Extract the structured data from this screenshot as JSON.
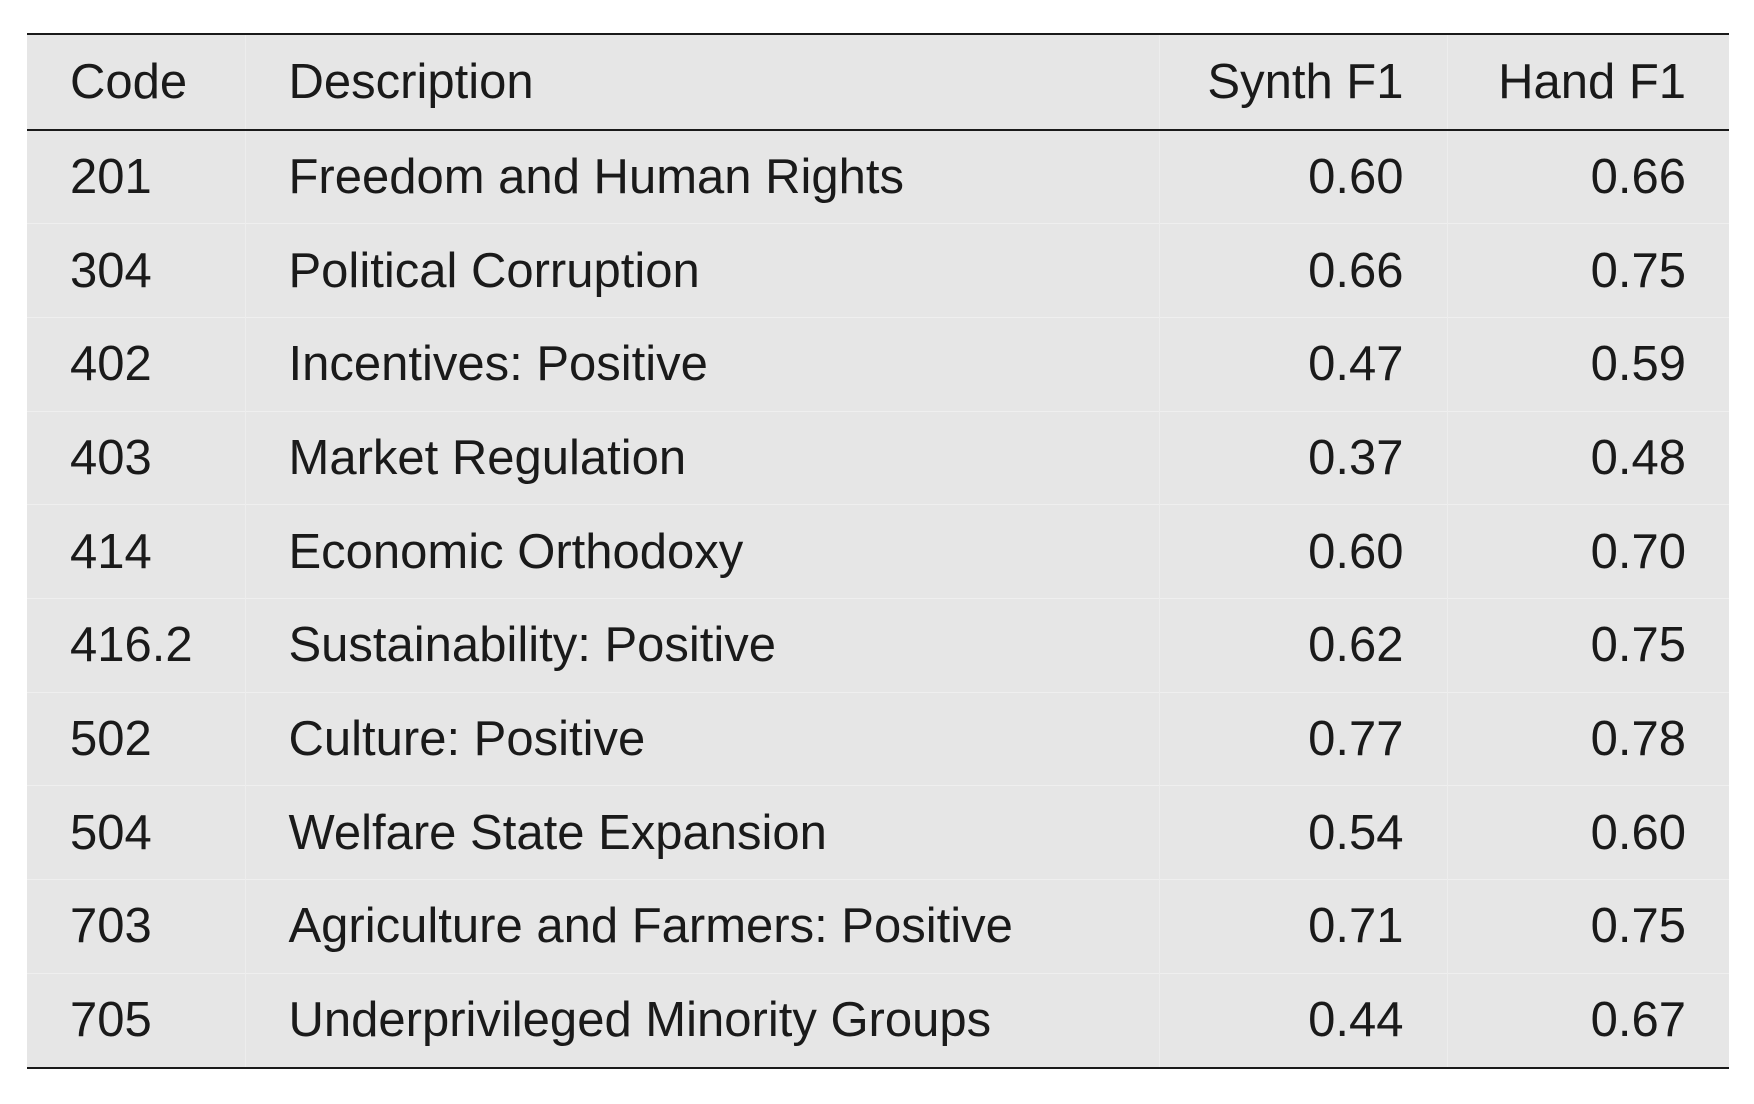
{
  "table": {
    "headers": {
      "code": "Code",
      "description": "Description",
      "synth_f1": "Synth F1",
      "hand_f1": "Hand F1"
    },
    "rows": [
      {
        "code": "201",
        "description": "Freedom and Human Rights",
        "synth_f1": "0.60",
        "hand_f1": "0.66"
      },
      {
        "code": "304",
        "description": "Political Corruption",
        "synth_f1": "0.66",
        "hand_f1": "0.75"
      },
      {
        "code": "402",
        "description": "Incentives: Positive",
        "synth_f1": "0.47",
        "hand_f1": "0.59"
      },
      {
        "code": "403",
        "description": "Market Regulation",
        "synth_f1": "0.37",
        "hand_f1": "0.48"
      },
      {
        "code": "414",
        "description": "Economic Orthodoxy",
        "synth_f1": "0.60",
        "hand_f1": "0.70"
      },
      {
        "code": "416.2",
        "description": "Sustainability: Positive",
        "synth_f1": "0.62",
        "hand_f1": "0.75"
      },
      {
        "code": "502",
        "description": "Culture: Positive",
        "synth_f1": "0.77",
        "hand_f1": "0.78"
      },
      {
        "code": "504",
        "description": "Welfare State Expansion",
        "synth_f1": "0.54",
        "hand_f1": "0.60"
      },
      {
        "code": "703",
        "description": "Agriculture and Farmers: Positive",
        "synth_f1": "0.71",
        "hand_f1": "0.75"
      },
      {
        "code": "705",
        "description": "Underprivileged Minority Groups",
        "synth_f1": "0.44",
        "hand_f1": "0.67"
      }
    ]
  },
  "colors": {
    "table_background": "#e6e6e6",
    "rule": "#1a1a1a",
    "text": "#1a1a1a"
  }
}
